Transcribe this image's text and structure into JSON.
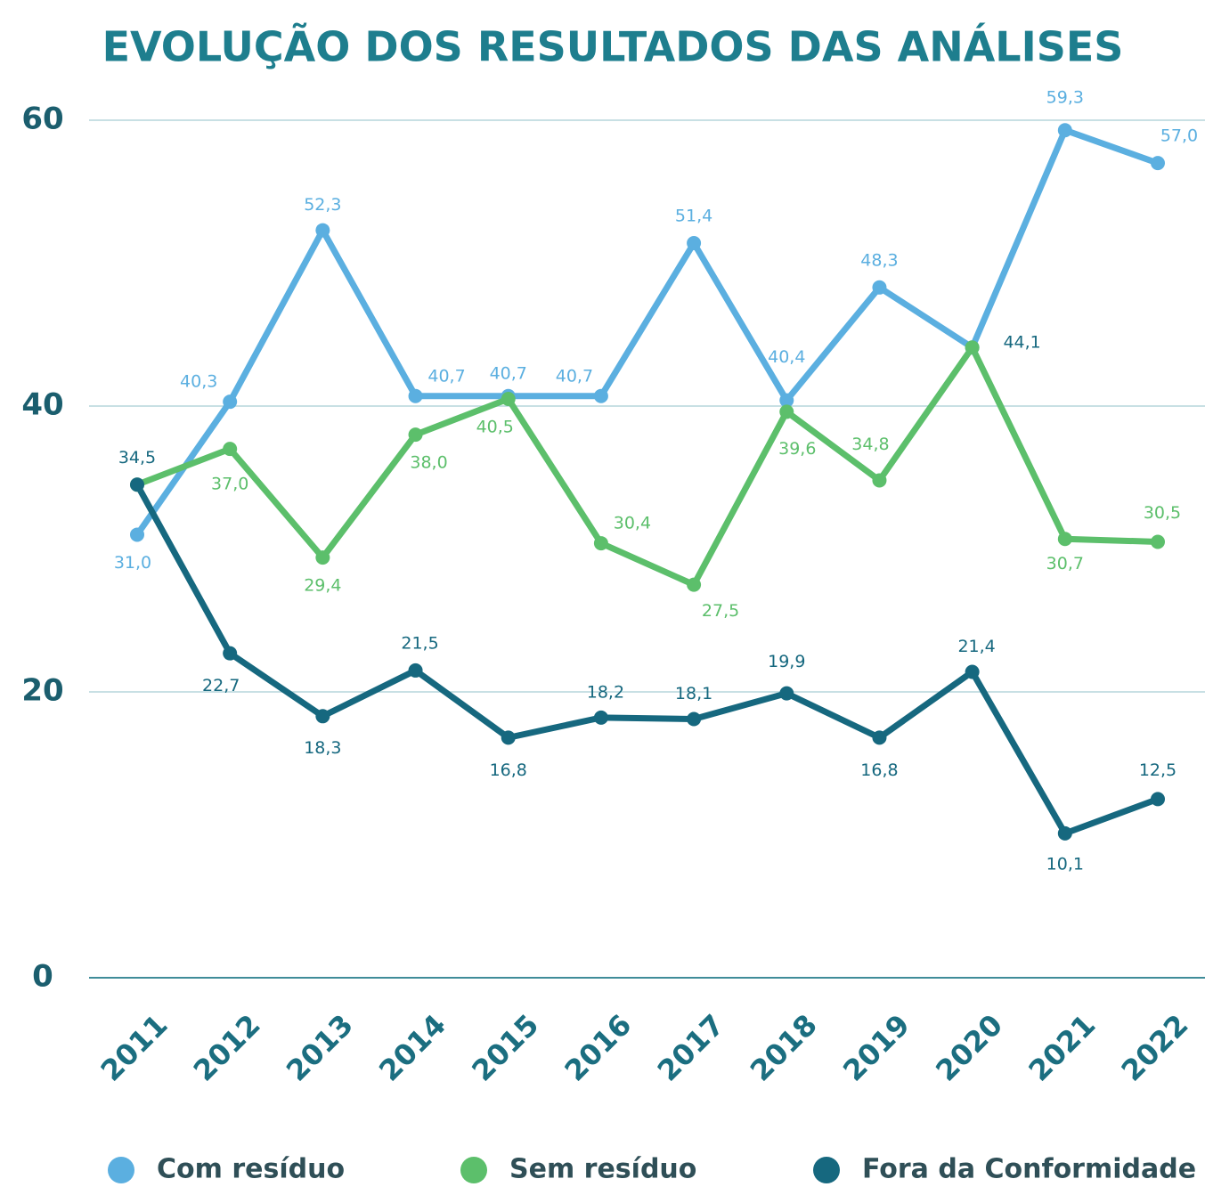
{
  "chart_data": {
    "type": "line",
    "title": "EVOLUÇÃO DOS RESULTADOS DAS ANÁLISES",
    "categories": [
      "2011",
      "2012",
      "2013",
      "2014",
      "2015",
      "2016",
      "2017",
      "2018",
      "2019",
      "2020",
      "2021",
      "2022"
    ],
    "series": [
      {
        "name": "Com resíduo",
        "color": "#5bafe0",
        "values": [
          31.0,
          40.3,
          52.3,
          40.7,
          40.7,
          40.7,
          51.4,
          40.4,
          48.3,
          44.1,
          59.3,
          57.0
        ],
        "value_labels": [
          "31,0",
          "40,3",
          "52,3",
          "40,7",
          "40,7",
          "40,7",
          "51,4",
          "40,4",
          "48,3",
          "44,1",
          "59,3",
          "57,0"
        ]
      },
      {
        "name": "Sem resíduo",
        "color": "#5cbf6b",
        "values": [
          34.5,
          37.0,
          29.4,
          38.0,
          40.5,
          30.4,
          27.5,
          39.6,
          34.8,
          44.1,
          30.7,
          30.5
        ],
        "value_labels": [
          null,
          "37,0",
          "29,4",
          "38,0",
          "40,5",
          "30,4",
          "27,5",
          "39,6",
          "34,8",
          null,
          "30,7",
          "30,5"
        ]
      },
      {
        "name": "Fora da Conformidade",
        "color": "#16687f",
        "values": [
          34.5,
          22.7,
          18.3,
          21.5,
          16.8,
          18.2,
          18.1,
          19.9,
          16.8,
          21.4,
          10.1,
          12.5
        ],
        "value_labels": [
          "34,5",
          "22,7",
          "18,3",
          "21,5",
          "16,8",
          "18,2",
          "18,1",
          "19,9",
          "16,8",
          "21,4",
          "10,1",
          "12,5"
        ]
      }
    ],
    "ylim": [
      0,
      60
    ],
    "yticks": [
      0,
      20,
      40,
      60
    ],
    "grid": true,
    "legend": "bottom"
  }
}
